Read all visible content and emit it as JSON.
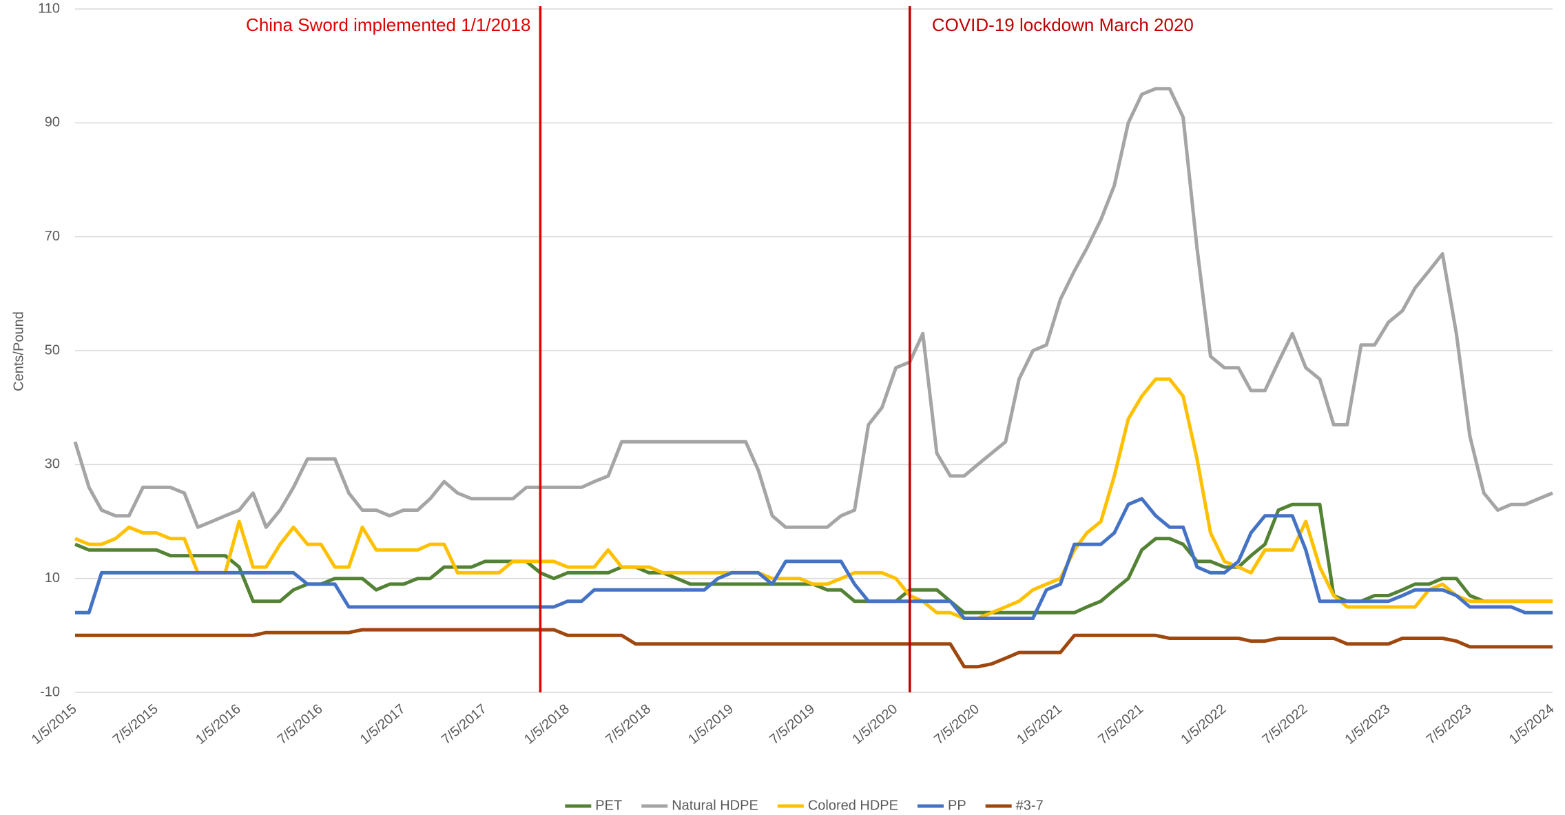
{
  "chart_data": {
    "type": "line",
    "y_label": "Cents/Pound",
    "x": [
      "1/5/2015",
      "2/5/2015",
      "3/5/2015",
      "4/5/2015",
      "5/5/2015",
      "6/5/2015",
      "7/5/2015",
      "8/5/2015",
      "9/5/2015",
      "10/5/2015",
      "11/5/2015",
      "12/5/2015",
      "1/5/2016",
      "2/5/2016",
      "3/5/2016",
      "4/5/2016",
      "5/5/2016",
      "6/5/2016",
      "7/5/2016",
      "8/5/2016",
      "9/5/2016",
      "10/5/2016",
      "11/5/2016",
      "12/5/2016",
      "1/5/2017",
      "2/5/2017",
      "3/5/2017",
      "4/5/2017",
      "5/5/2017",
      "6/5/2017",
      "7/5/2017",
      "8/5/2017",
      "9/5/2017",
      "10/5/2017",
      "11/5/2017",
      "12/5/2017",
      "1/5/2018",
      "2/5/2018",
      "3/5/2018",
      "4/5/2018",
      "5/5/2018",
      "6/5/2018",
      "7/5/2018",
      "8/5/2018",
      "9/5/2018",
      "10/5/2018",
      "11/5/2018",
      "12/5/2018",
      "1/5/2019",
      "2/5/2019",
      "3/5/2019",
      "4/5/2019",
      "5/5/2019",
      "6/5/2019",
      "7/5/2019",
      "8/5/2019",
      "9/5/2019",
      "10/5/2019",
      "11/5/2019",
      "12/5/2019",
      "1/5/2020",
      "2/5/2020",
      "3/5/2020",
      "4/5/2020",
      "5/5/2020",
      "6/5/2020",
      "7/5/2020",
      "8/5/2020",
      "9/5/2020",
      "10/5/2020",
      "11/5/2020",
      "12/5/2020",
      "1/5/2021",
      "2/5/2021",
      "3/5/2021",
      "4/5/2021",
      "5/5/2021",
      "6/5/2021",
      "7/5/2021",
      "8/5/2021",
      "9/5/2021",
      "10/5/2021",
      "11/5/2021",
      "12/5/2021",
      "1/5/2022",
      "2/5/2022",
      "3/5/2022",
      "4/5/2022",
      "5/5/2022",
      "6/5/2022",
      "7/5/2022",
      "8/5/2022",
      "9/5/2022",
      "10/5/2022",
      "11/5/2022",
      "12/5/2022",
      "1/5/2023",
      "2/5/2023",
      "3/5/2023",
      "4/5/2023",
      "5/5/2023",
      "6/5/2023",
      "7/5/2023",
      "8/5/2023",
      "9/5/2023",
      "10/5/2023",
      "11/5/2023",
      "12/5/2023",
      "1/5/2024"
    ],
    "series": [
      {
        "name": "PET",
        "color": "#548235",
        "values": [
          16,
          15,
          15,
          15,
          15,
          15,
          15,
          14,
          14,
          14,
          14,
          14,
          12,
          6,
          6,
          6,
          8,
          9,
          9,
          10,
          10,
          10,
          8,
          9,
          9,
          10,
          10,
          12,
          12,
          12,
          13,
          13,
          13,
          13,
          11,
          10,
          11,
          11,
          11,
          11,
          12,
          12,
          11,
          11,
          10,
          9,
          9,
          9,
          9,
          9,
          9,
          9,
          9,
          9,
          9,
          8,
          8,
          6,
          6,
          6,
          6,
          8,
          8,
          8,
          6,
          4,
          4,
          4,
          4,
          4,
          4,
          4,
          4,
          4,
          5,
          6,
          8,
          10,
          15,
          17,
          17,
          16,
          13,
          13,
          12,
          12,
          14,
          16,
          22,
          23,
          23,
          23,
          7,
          6,
          6,
          7,
          7,
          8,
          9,
          9,
          10,
          10,
          7,
          6,
          6,
          6,
          6,
          6,
          6
        ]
      },
      {
        "name": "Natural HDPE",
        "color": "#a5a5a5",
        "values": [
          34,
          26,
          22,
          21,
          21,
          26,
          26,
          26,
          25,
          19,
          20,
          21,
          22,
          25,
          19,
          22,
          26,
          31,
          31,
          31,
          25,
          22,
          22,
          21,
          22,
          22,
          24,
          27,
          25,
          24,
          24,
          24,
          24,
          26,
          26,
          26,
          26,
          26,
          27,
          28,
          34,
          34,
          34,
          34,
          34,
          34,
          34,
          34,
          34,
          34,
          29,
          21,
          19,
          19,
          19,
          19,
          21,
          22,
          37,
          40,
          47,
          48,
          53,
          32,
          28,
          28,
          30,
          32,
          34,
          45,
          50,
          51,
          59,
          64,
          68,
          73,
          79,
          90,
          95,
          96,
          96,
          91,
          68,
          49,
          47,
          47,
          43,
          43,
          48,
          53,
          47,
          45,
          37,
          37,
          51,
          51,
          55,
          57,
          61,
          64,
          67,
          53,
          35,
          25,
          22,
          23,
          23,
          24,
          25
        ]
      },
      {
        "name": "Colored HDPE",
        "color": "#ffc000",
        "values": [
          17,
          16,
          16,
          17,
          19,
          18,
          18,
          17,
          17,
          11,
          11,
          11,
          20,
          12,
          12,
          16,
          19,
          16,
          16,
          12,
          12,
          19,
          15,
          15,
          15,
          15,
          16,
          16,
          11,
          11,
          11,
          11,
          13,
          13,
          13,
          13,
          12,
          12,
          12,
          15,
          12,
          12,
          12,
          11,
          11,
          11,
          11,
          11,
          11,
          11,
          11,
          10,
          10,
          10,
          9,
          9,
          10,
          11,
          11,
          11,
          10,
          7,
          6,
          4,
          4,
          3,
          3,
          4,
          5,
          6,
          8,
          9,
          10,
          15,
          18,
          20,
          28,
          38,
          42,
          45,
          45,
          42,
          31,
          18,
          13,
          12,
          11,
          15,
          15,
          15,
          20,
          12,
          7,
          5,
          5,
          5,
          5,
          5,
          5,
          8,
          9,
          7,
          6,
          6,
          6,
          6,
          6,
          6,
          6
        ]
      },
      {
        "name": "PP",
        "color": "#4472c4",
        "values": [
          4,
          4,
          11,
          11,
          11,
          11,
          11,
          11,
          11,
          11,
          11,
          11,
          11,
          11,
          11,
          11,
          11,
          9,
          9,
          9,
          5,
          5,
          5,
          5,
          5,
          5,
          5,
          5,
          5,
          5,
          5,
          5,
          5,
          5,
          5,
          5,
          6,
          6,
          8,
          8,
          8,
          8,
          8,
          8,
          8,
          8,
          8,
          10,
          11,
          11,
          11,
          9,
          13,
          13,
          13,
          13,
          13,
          9,
          6,
          6,
          6,
          6,
          6,
          6,
          6,
          3,
          3,
          3,
          3,
          3,
          3,
          8,
          9,
          16,
          16,
          16,
          18,
          23,
          24,
          21,
          19,
          19,
          12,
          11,
          11,
          13,
          18,
          21,
          21,
          21,
          15,
          6,
          6,
          6,
          6,
          6,
          6,
          7,
          8,
          8,
          8,
          7,
          5,
          5,
          5,
          5,
          4,
          4,
          4
        ]
      },
      {
        "name": "#3-7",
        "color": "#9e480e",
        "values": [
          0,
          0,
          0,
          0,
          0,
          0,
          0,
          0,
          0,
          0,
          0,
          0,
          0,
          0,
          0.5,
          0.5,
          0.5,
          0.5,
          0.5,
          0.5,
          0.5,
          1,
          1,
          1,
          1,
          1,
          1,
          1,
          1,
          1,
          1,
          1,
          1,
          1,
          1,
          1,
          0,
          0,
          0,
          0,
          0,
          -1.5,
          -1.5,
          -1.5,
          -1.5,
          -1.5,
          -1.5,
          -1.5,
          -1.5,
          -1.5,
          -1.5,
          -1.5,
          -1.5,
          -1.5,
          -1.5,
          -1.5,
          -1.5,
          -1.5,
          -1.5,
          -1.5,
          -1.5,
          -1.5,
          -1.5,
          -1.5,
          -1.5,
          -5.5,
          -5.5,
          -5,
          -4,
          -3,
          -3,
          -3,
          -3,
          0,
          0,
          0,
          0,
          0,
          0,
          0,
          -0.5,
          -0.5,
          -0.5,
          -0.5,
          -0.5,
          -0.5,
          -1,
          -1,
          -0.5,
          -0.5,
          -0.5,
          -0.5,
          -0.5,
          -1.5,
          -1.5,
          -1.5,
          -1.5,
          -0.5,
          -0.5,
          -0.5,
          -0.5,
          -1,
          -2,
          -2,
          -2,
          -2,
          -2,
          -2,
          -2
        ]
      }
    ],
    "xlim": [
      "1/5/2015",
      "1/5/2024"
    ],
    "xticks": [
      "1/5/2015",
      "7/5/2015",
      "1/5/2016",
      "7/5/2016",
      "1/5/2017",
      "7/5/2017",
      "1/5/2018",
      "7/5/2018",
      "1/5/2019",
      "7/5/2019",
      "1/5/2020",
      "7/5/2020",
      "1/5/2021",
      "7/5/2021",
      "1/5/2022",
      "7/5/2022",
      "1/5/2023",
      "7/5/2023",
      "1/5/2024"
    ],
    "ylim": [
      -10,
      110
    ],
    "yticks": [
      -10,
      10,
      30,
      50,
      70,
      90,
      110
    ],
    "grid": true,
    "legend": "bottom",
    "annotations": [
      {
        "text": "China Sword implemented 1/1/2018",
        "x": "11/5/2017",
        "color": "#e00000"
      },
      {
        "text": "COVID-19 lockdown March 2020",
        "x": "2/5/2020",
        "color": "#c00000"
      }
    ]
  }
}
